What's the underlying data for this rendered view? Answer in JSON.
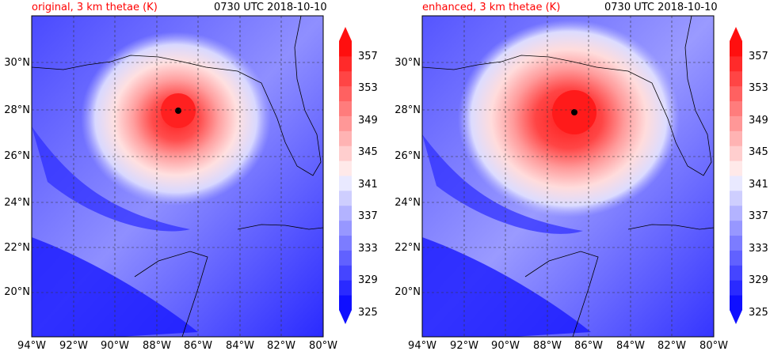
{
  "panels": [
    {
      "title_left": "original, 3 km thetae (K)",
      "title_right": "0730 UTC 2018-10-10",
      "eye_lon": -87.0,
      "eye_lat": 28.0
    },
    {
      "title_left": "enhanced, 3 km thetae (K)",
      "title_right": "0730 UTC 2018-10-10",
      "eye_lon": -86.7,
      "eye_lat": 28.0
    }
  ],
  "lat_labels": [
    "30°N",
    "28°N",
    "26°N",
    "24°N",
    "22°N",
    "20°N"
  ],
  "lon_labels": [
    "94°W",
    "92°W",
    "90°W",
    "88°W",
    "86°W",
    "84°W",
    "82°W",
    "80°W"
  ],
  "colorbar": {
    "labels": [
      "357",
      "353",
      "349",
      "345",
      "341",
      "337",
      "333",
      "329",
      "325"
    ],
    "min": 325,
    "max": 357,
    "colors": [
      "#0f0fff",
      "#2a2aff",
      "#4545ff",
      "#6161ff",
      "#7c7cff",
      "#9797ff",
      "#b3b3ff",
      "#cecefe",
      "#e9e9ff",
      "#ffe9e9",
      "#ffcece",
      "#ffb3b3",
      "#ff9797",
      "#ff7c7c",
      "#ff6161",
      "#ff4545",
      "#ff2a2a",
      "#ff0f0f"
    ]
  }
}
